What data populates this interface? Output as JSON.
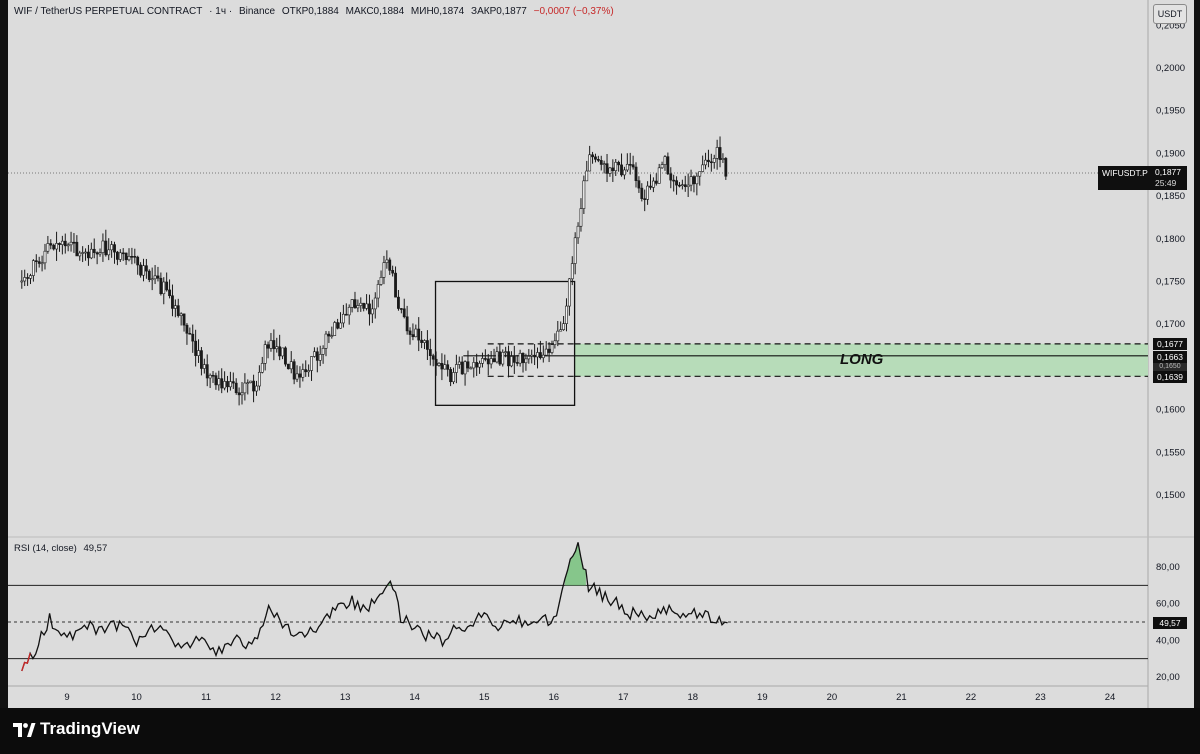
{
  "header": {
    "symbol": "WIF / TetherUS PERPETUAL CONTRACT",
    "interval": "· 1ч ·",
    "exchange": "Binance",
    "open": "ОТКР0,1884",
    "high": "МАКС0,1884",
    "low": "МИН0,1874",
    "close": "ЗАКР0,1877",
    "change": "−0,0007 (−0,37%)"
  },
  "currency_button": "USDT",
  "price_tag": {
    "symbol": "WIFUSDT.P",
    "price": "0,1877",
    "countdown": "25:49"
  },
  "zone_tags": {
    "upper": "0,1677",
    "mid": "0,1663",
    "lower": "0,1639",
    "hidden": "0,1650"
  },
  "zone_label": "LONG",
  "rsi": {
    "label": "RSI (14, close)",
    "value": "49,57"
  },
  "branding": {
    "logo": "tradingview-logo-icon",
    "name": "TradingView"
  },
  "colors": {
    "background": "#dcdcdc",
    "candle_body": "#1a1a1a",
    "zone_fill": "#b7dcb9",
    "rsi_line": "#111111",
    "rsi_overbought_fill": "#6abf70",
    "rsi_oversold_fill": "#c62828",
    "change_negative": "#c62828"
  },
  "chart_data": [
    {
      "type": "candlestick",
      "title": "WIF / TetherUS PERPETUAL CONTRACT · 1ч · Binance",
      "y_axis": {
        "ticks": [
          "0,2050",
          "0,2000",
          "0,1950",
          "0,1900",
          "0,1850",
          "0,1800",
          "0,1750",
          "0,1700",
          "0,1650",
          "0,1600",
          "0,1550",
          "0,1500"
        ],
        "range": [
          0.145,
          0.2055
        ]
      },
      "x_axis": {
        "ticks": [
          "9",
          "10",
          "11",
          "12",
          "13",
          "14",
          "15",
          "16",
          "17",
          "18",
          "19",
          "20",
          "21",
          "22",
          "23",
          "24"
        ],
        "range_days": [
          8.3,
          24.6
        ]
      },
      "price_path": [
        [
          8.35,
          0.175
        ],
        [
          8.8,
          0.1795
        ],
        [
          9.2,
          0.1785
        ],
        [
          9.6,
          0.179
        ],
        [
          10.0,
          0.177
        ],
        [
          10.4,
          0.174
        ],
        [
          10.7,
          0.17
        ],
        [
          11.0,
          0.164
        ],
        [
          11.4,
          0.1625
        ],
        [
          11.7,
          0.163
        ],
        [
          11.9,
          0.168
        ],
        [
          12.1,
          0.1665
        ],
        [
          12.3,
          0.164
        ],
        [
          12.6,
          0.1665
        ],
        [
          12.9,
          0.17
        ],
        [
          13.1,
          0.172
        ],
        [
          13.4,
          0.172
        ],
        [
          13.6,
          0.178
        ],
        [
          13.8,
          0.171
        ],
        [
          14.0,
          0.169
        ],
        [
          14.2,
          0.167
        ],
        [
          14.5,
          0.164
        ],
        [
          14.8,
          0.1655
        ],
        [
          15.2,
          0.166
        ],
        [
          15.6,
          0.1658
        ],
        [
          15.9,
          0.1665
        ],
        [
          16.15,
          0.171
        ],
        [
          16.3,
          0.18
        ],
        [
          16.5,
          0.189
        ],
        [
          16.8,
          0.188
        ],
        [
          17.1,
          0.1885
        ],
        [
          17.3,
          0.185
        ],
        [
          17.6,
          0.189
        ],
        [
          17.8,
          0.186
        ],
        [
          18.0,
          0.1865
        ],
        [
          18.2,
          0.189
        ],
        [
          18.35,
          0.19
        ],
        [
          18.5,
          0.1877
        ]
      ],
      "current_price": 0.1877,
      "annotations": [
        {
          "type": "rectangle",
          "label": "consolidation box",
          "x": [
            14.3,
            16.3
          ],
          "y": [
            0.1605,
            0.175
          ]
        },
        {
          "type": "zone",
          "label": "LONG",
          "x_from": 16.3,
          "y_top": 0.1677,
          "y_mid": 0.1663,
          "y_bottom": 0.1639
        }
      ]
    },
    {
      "type": "line",
      "title": "RSI (14, close)",
      "current_value": 49.57,
      "y_axis": {
        "ticks": [
          "80,00",
          "60,00",
          "40,00",
          "20,00"
        ],
        "range": [
          15,
          98
        ]
      },
      "levels": {
        "overbought": 70,
        "middle": 50,
        "oversold": 30
      },
      "series": [
        {
          "x": [
            8.35,
            8.55,
            8.75,
            9.0,
            9.25,
            9.5,
            9.8,
            10.0,
            10.3,
            10.6,
            10.9,
            11.1,
            11.4,
            11.7,
            11.9,
            12.1,
            12.3,
            12.5,
            12.7,
            12.9,
            13.1,
            13.3,
            13.5,
            13.65,
            13.8,
            14.0,
            14.2,
            14.4,
            14.6,
            14.8,
            15.0,
            15.2,
            15.5,
            15.8,
            16.0,
            16.2,
            16.35,
            16.5,
            16.7,
            16.9,
            17.1,
            17.3,
            17.5,
            17.7,
            17.9,
            18.1,
            18.3,
            18.5
          ],
          "values": [
            25,
            35,
            52,
            40,
            48,
            45,
            50,
            38,
            48,
            35,
            42,
            33,
            40,
            38,
            58,
            50,
            40,
            45,
            52,
            58,
            62,
            55,
            65,
            75,
            52,
            48,
            42,
            40,
            48,
            47,
            56,
            48,
            50,
            52,
            50,
            78,
            90,
            70,
            65,
            60,
            55,
            52,
            55,
            56,
            52,
            55,
            50,
            49.57
          ]
        }
      ]
    }
  ]
}
